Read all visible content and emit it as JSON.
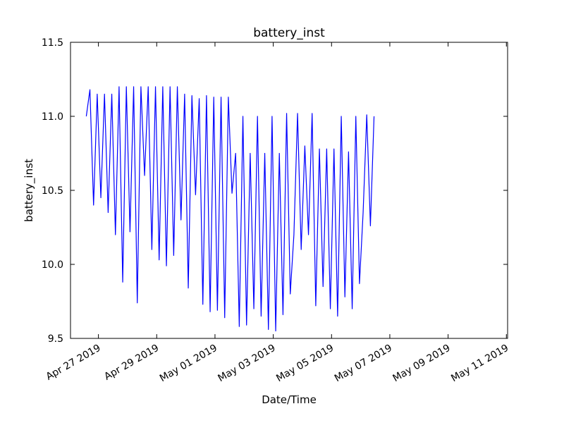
{
  "chart_data": {
    "type": "line",
    "title": "battery_inst",
    "x_label": "Date/Time",
    "y_label": "battery_inst",
    "x": [
      "2019-04-26T14:00",
      "2019-04-26T17:00",
      "2019-04-26T20:00",
      "2019-04-26T23:00",
      "2019-04-27T02:00",
      "2019-04-27T05:00",
      "2019-04-27T08:00",
      "2019-04-27T11:00",
      "2019-04-27T14:00",
      "2019-04-27T17:00",
      "2019-04-27T20:00",
      "2019-04-27T23:00",
      "2019-04-28T02:00",
      "2019-04-28T05:00",
      "2019-04-28T08:00",
      "2019-04-28T11:00",
      "2019-04-28T14:00",
      "2019-04-28T17:00",
      "2019-04-28T20:00",
      "2019-04-28T23:00",
      "2019-04-29T02:00",
      "2019-04-29T05:00",
      "2019-04-29T08:00",
      "2019-04-29T11:00",
      "2019-04-29T14:00",
      "2019-04-29T17:00",
      "2019-04-29T20:00",
      "2019-04-29T23:00",
      "2019-04-30T02:00",
      "2019-04-30T05:00",
      "2019-04-30T08:00",
      "2019-04-30T11:00",
      "2019-04-30T14:00",
      "2019-04-30T17:00",
      "2019-04-30T20:00",
      "2019-04-30T23:00",
      "2019-05-01T02:00",
      "2019-05-01T05:00",
      "2019-05-01T08:00",
      "2019-05-01T11:00",
      "2019-05-01T14:00",
      "2019-05-01T17:00",
      "2019-05-01T20:00",
      "2019-05-01T23:00",
      "2019-05-02T02:00",
      "2019-05-02T05:00",
      "2019-05-02T08:00",
      "2019-05-02T11:00",
      "2019-05-02T14:00",
      "2019-05-02T17:00",
      "2019-05-02T20:00",
      "2019-05-02T23:00",
      "2019-05-03T02:00",
      "2019-05-03T05:00",
      "2019-05-03T08:00",
      "2019-05-03T11:00",
      "2019-05-03T14:00",
      "2019-05-03T17:00",
      "2019-05-03T20:00",
      "2019-05-03T23:00",
      "2019-05-04T02:00",
      "2019-05-04T05:00",
      "2019-05-04T08:00",
      "2019-05-04T11:00",
      "2019-05-04T14:00",
      "2019-05-04T17:00",
      "2019-05-04T20:00",
      "2019-05-04T23:00",
      "2019-05-05T02:00",
      "2019-05-05T05:00",
      "2019-05-05T08:00",
      "2019-05-05T11:00",
      "2019-05-05T14:00",
      "2019-05-05T17:00",
      "2019-05-05T20:00",
      "2019-05-05T23:00",
      "2019-05-06T02:00",
      "2019-05-06T05:00",
      "2019-05-06T08:00",
      "2019-05-06T11:00"
    ],
    "series": [
      {
        "name": "battery_inst",
        "color": "#0000ff",
        "values": [
          11.0,
          11.18,
          10.4,
          11.15,
          10.45,
          11.15,
          10.35,
          11.15,
          10.2,
          11.2,
          9.88,
          11.2,
          10.22,
          11.2,
          9.74,
          11.2,
          10.6,
          11.2,
          10.1,
          11.2,
          10.03,
          11.2,
          9.99,
          11.2,
          10.06,
          11.2,
          10.3,
          11.15,
          9.84,
          11.14,
          10.47,
          11.12,
          9.73,
          11.14,
          9.68,
          11.13,
          9.69,
          11.13,
          9.64,
          11.13,
          10.48,
          10.75,
          9.58,
          11.0,
          9.59,
          10.75,
          9.7,
          11.0,
          9.65,
          10.75,
          9.56,
          11.0,
          9.55,
          10.75,
          9.66,
          11.02,
          9.8,
          10.2,
          11.02,
          10.1,
          10.8,
          10.2,
          11.02,
          9.72,
          10.78,
          9.85,
          10.78,
          9.7,
          10.78,
          9.65,
          11.0,
          9.78,
          10.76,
          9.7,
          11.0,
          9.87,
          10.35,
          11.01,
          10.26,
          11.0
        ]
      }
    ],
    "xlim": [
      "2019-04-26T01:00",
      "2019-05-11T01:00"
    ],
    "xticks": [
      {
        "value": "2019-04-27T00:00",
        "label": "Apr 27 2019"
      },
      {
        "value": "2019-04-29T00:00",
        "label": "Apr 29 2019"
      },
      {
        "value": "2019-05-01T00:00",
        "label": "May 01 2019"
      },
      {
        "value": "2019-05-03T00:00",
        "label": "May 03 2019"
      },
      {
        "value": "2019-05-05T00:00",
        "label": "May 05 2019"
      },
      {
        "value": "2019-05-07T00:00",
        "label": "May 07 2019"
      },
      {
        "value": "2019-05-09T00:00",
        "label": "May 09 2019"
      },
      {
        "value": "2019-05-11T00:00",
        "label": "May 11 2019"
      }
    ],
    "ylim": [
      9.5,
      11.5
    ],
    "yticks": [
      9.5,
      {
        "value": 10,
        "label": "10.0"
      },
      10.5,
      {
        "value": 11,
        "label": "11.0"
      },
      11.5
    ],
    "grid": false
  }
}
